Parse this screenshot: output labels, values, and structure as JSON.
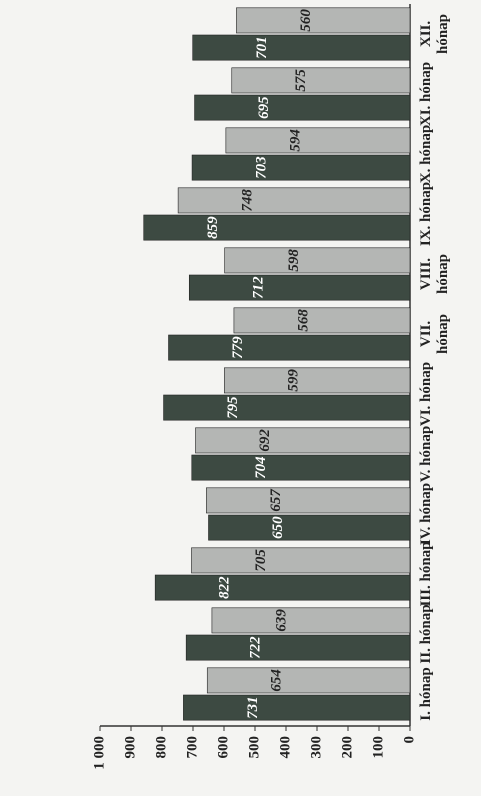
{
  "chart_data": {
    "type": "bar",
    "categories": [
      "I. hónap",
      "II. hónap",
      "III. hónap",
      "IV. hónap",
      "V. hónap",
      "VI. hónap",
      "VII. hónap",
      "VIII. hónap",
      "IX. hónap",
      "X. hónap",
      "XI. hónap",
      "XII. hónap"
    ],
    "series": [
      {
        "color": "#3d4a42",
        "values": [
          731,
          722,
          822,
          650,
          704,
          795,
          779,
          712,
          859,
          703,
          695,
          701
        ]
      },
      {
        "color": "#b4b6b4",
        "values": [
          654,
          639,
          705,
          657,
          692,
          599,
          568,
          598,
          748,
          594,
          575,
          560
        ]
      }
    ],
    "ylim": [
      0,
      1000
    ],
    "yticks": [
      0,
      100,
      200,
      300,
      400,
      500,
      600,
      700,
      800,
      900,
      {
        "value": 1000,
        "label": "1 000"
      }
    ],
    "grid": false
  }
}
